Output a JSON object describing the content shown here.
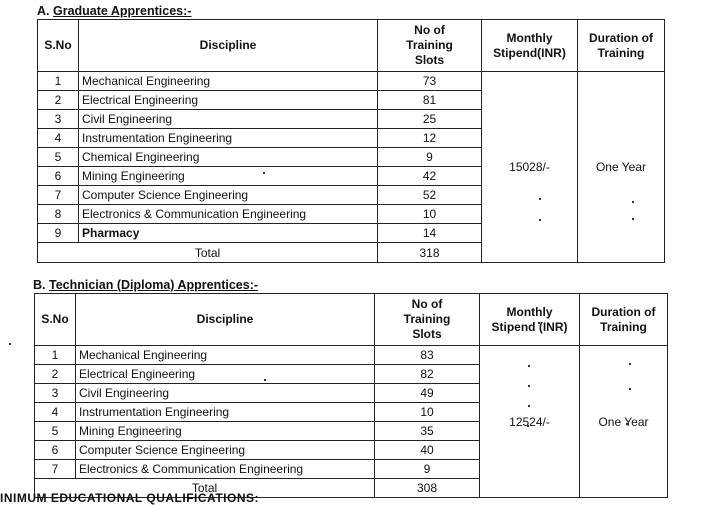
{
  "section_a": {
    "title_prefix": "A. ",
    "title_text": "Graduate Apprentices:-",
    "headers": {
      "sno": "S.No",
      "discipline": "Discipline",
      "slots": "No of Training Slots",
      "stipend": "Monthly Stipend(INR)",
      "duration": "Duration of Training"
    },
    "rows": [
      {
        "sno": "1",
        "discipline": "Mechanical Engineering",
        "slots": "73"
      },
      {
        "sno": "2",
        "discipline": "Electrical  Engineering",
        "slots": "81"
      },
      {
        "sno": "3",
        "discipline": "Civil Engineering",
        "slots": "25"
      },
      {
        "sno": "4",
        "discipline": "Instrumentation Engineering",
        "slots": "12"
      },
      {
        "sno": "5",
        "discipline": "Chemical Engineering",
        "slots": "9"
      },
      {
        "sno": "6",
        "discipline": "Mining Engineering",
        "slots": "42"
      },
      {
        "sno": "7",
        "discipline": "Computer Science  Engineering",
        "slots": "52"
      },
      {
        "sno": "8",
        "discipline": "Electronics & Communication Engineering",
        "slots": "10"
      },
      {
        "sno": "9",
        "discipline": "Pharmacy",
        "slots": "14"
      }
    ],
    "stipend": "15028/-",
    "duration": "One Year",
    "total_label": "Total",
    "total_value": "318"
  },
  "section_b": {
    "title_prefix": "B. ",
    "title_text": "Technician (Diploma) Apprentices:-",
    "headers": {
      "sno": "S.No",
      "discipline": "Discipline",
      "slots": "No of Training Slots",
      "stipend": "Monthly Stipend (INR)",
      "duration": "Duration of Training"
    },
    "rows": [
      {
        "sno": "1",
        "discipline": "Mechanical Engineering",
        "slots": "83"
      },
      {
        "sno": "2",
        "discipline": "Electrical  Engineering",
        "slots": "82"
      },
      {
        "sno": "3",
        "discipline": "Civil Engineering",
        "slots": "49"
      },
      {
        "sno": "4",
        "discipline": "Instrumentation Engineering",
        "slots": "10"
      },
      {
        "sno": "5",
        "discipline": "Mining Engineering",
        "slots": "35"
      },
      {
        "sno": "6",
        "discipline": "Computer Science  Engineering",
        "slots": "40"
      },
      {
        "sno": "7",
        "discipline": "Electronics & Communication Engineering",
        "slots": "9"
      }
    ],
    "stipend": "12524/-",
    "duration": "One Year",
    "total_label": "Total",
    "total_value": "308"
  },
  "footer_text": "INIMUM EDUCATIONAL QUALIFICATIONS:"
}
